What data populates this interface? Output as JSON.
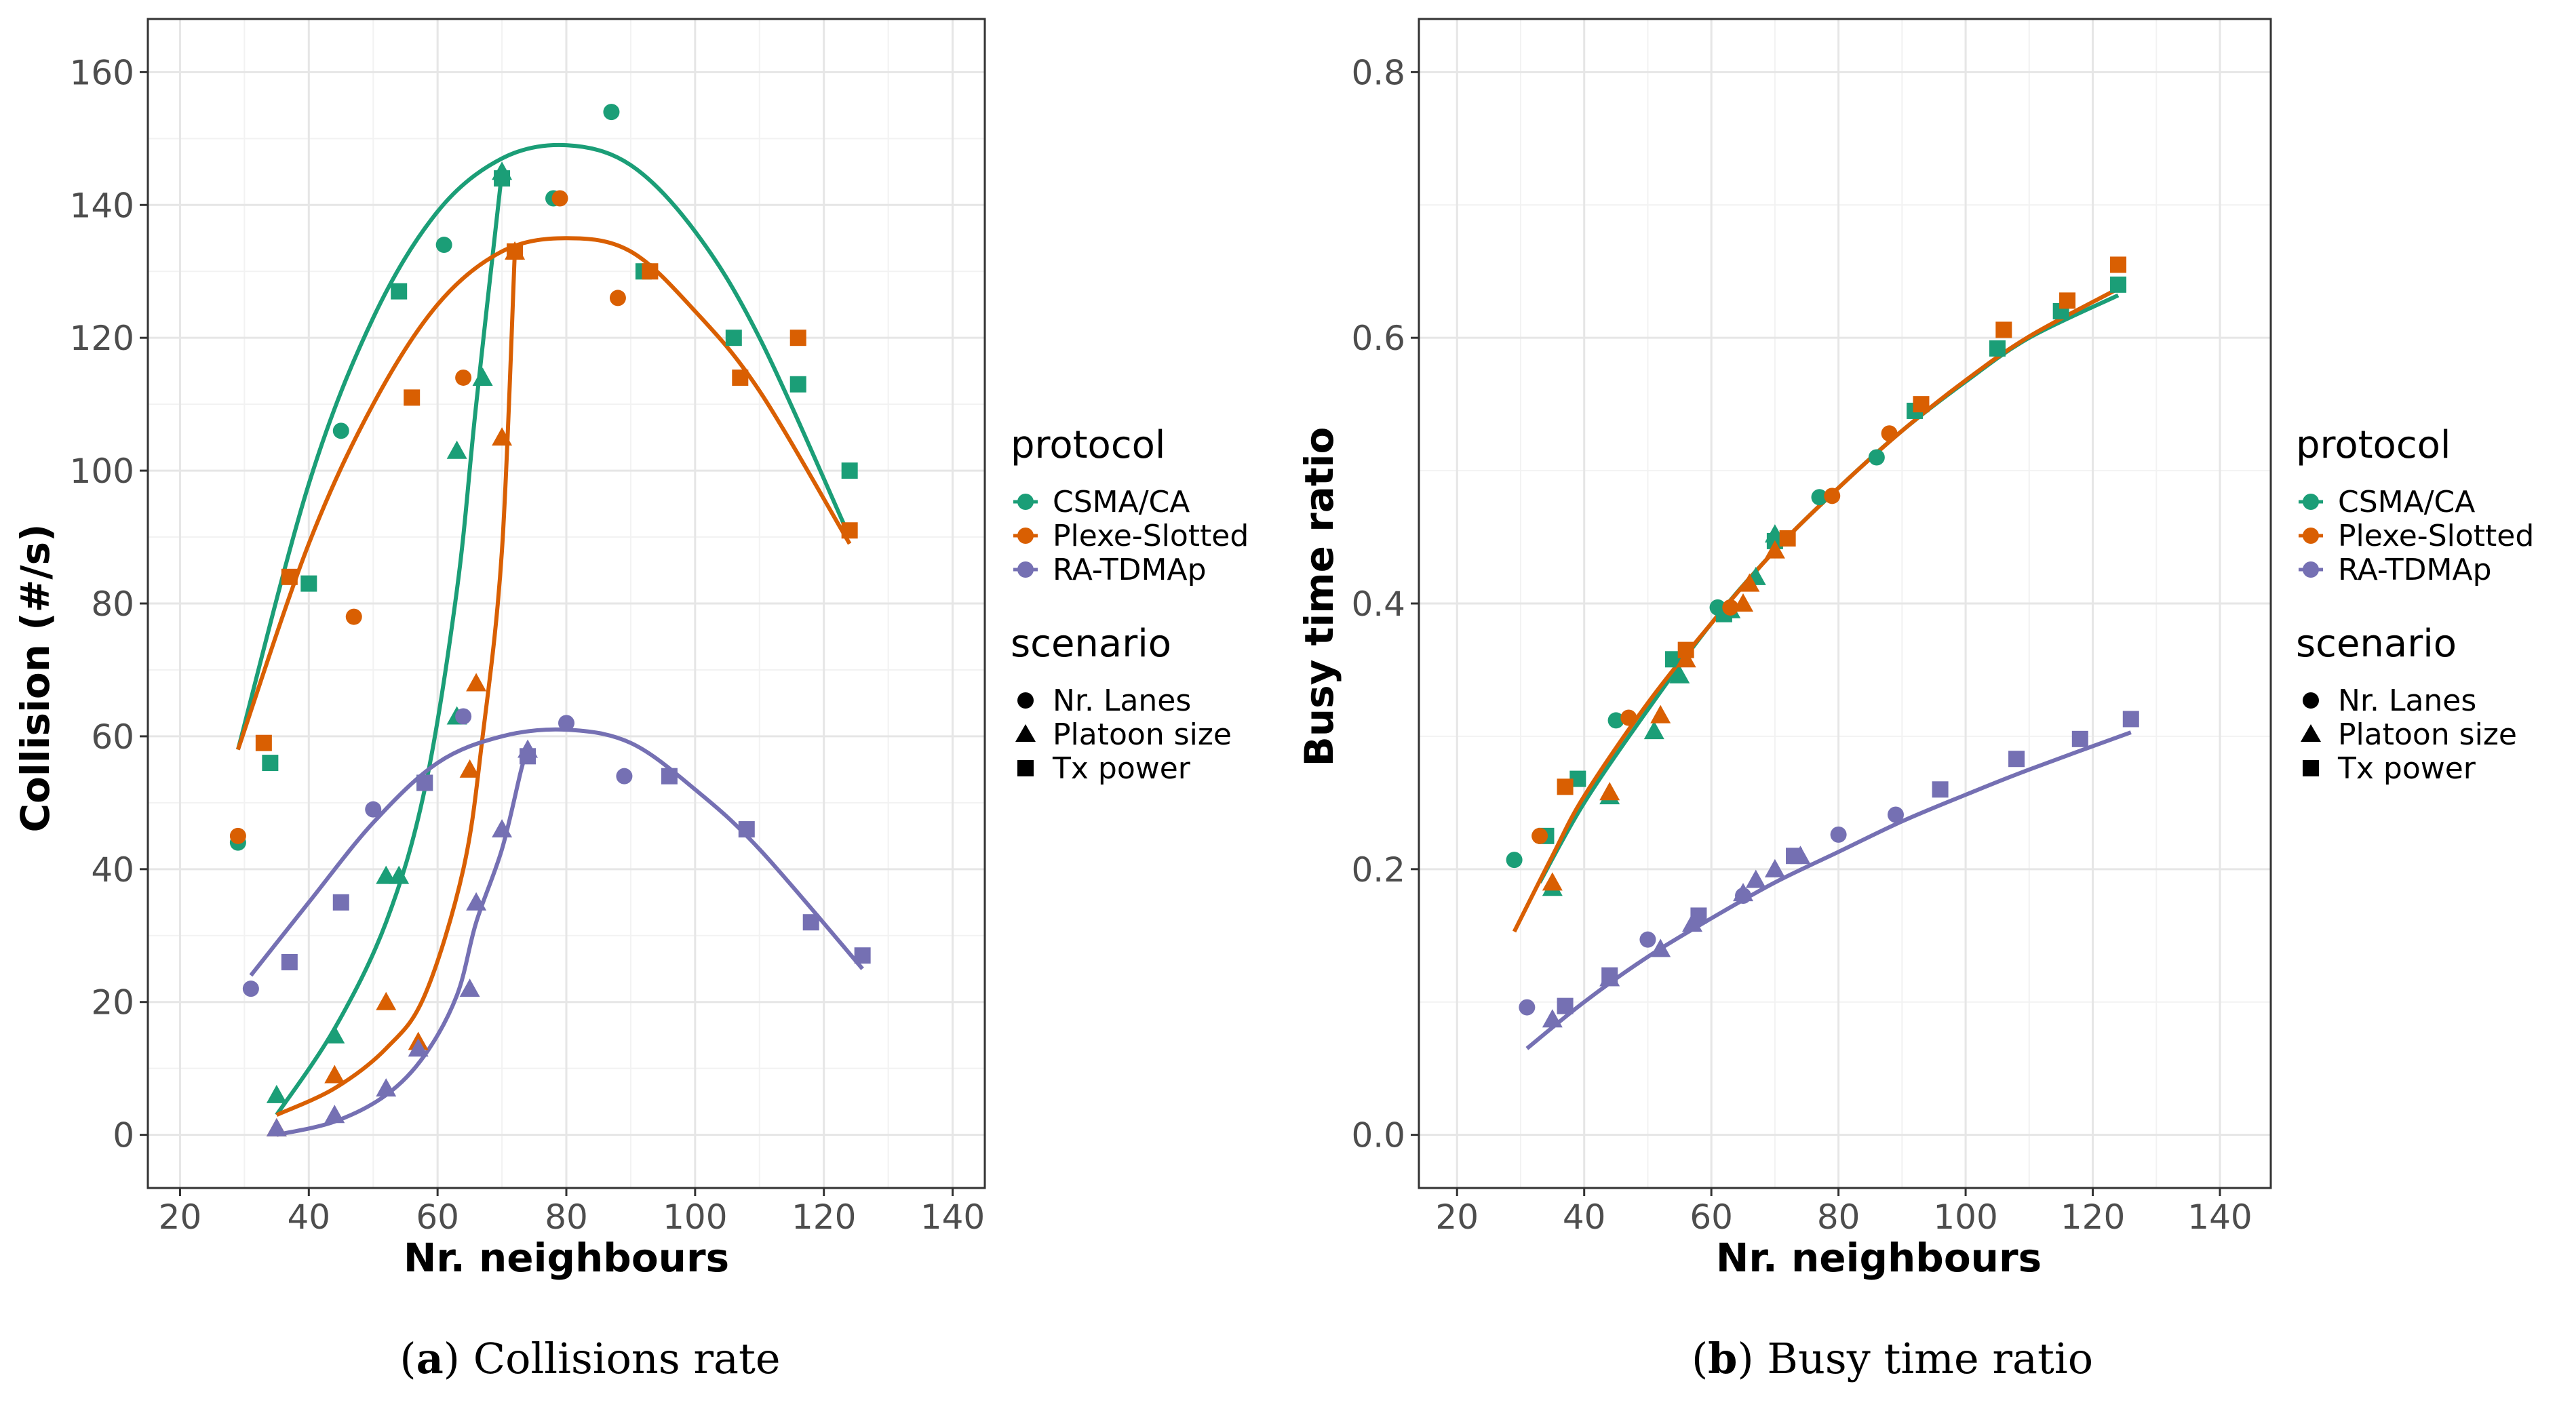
{
  "colors": {
    "CSMA/CA": "#1b9e77",
    "Plexe-Slotted": "#d95f02",
    "RA-TDMAp": "#7570b3"
  },
  "panels": [
    {
      "caption": {
        "open": "(",
        "letter": "a",
        "text": ") Collisions rate"
      },
      "legend": {
        "protocol_title": "protocol",
        "protocols": [
          "CSMA/CA",
          "Plexe-Slotted",
          "RA-TDMAp"
        ],
        "scenario_title": "scenario",
        "scenarios": [
          "Nr. Lanes",
          "Platoon size",
          "Tx power"
        ]
      }
    },
    {
      "caption": {
        "open": "(",
        "letter": "b",
        "text": ") Busy time ratio"
      },
      "legend": {
        "protocol_title": "protocol",
        "protocols": [
          "CSMA/CA",
          "Plexe-Slotted",
          "RA-TDMAp"
        ],
        "scenario_title": "scenario",
        "scenarios": [
          "Nr. Lanes",
          "Platoon size",
          "Tx power"
        ]
      }
    }
  ],
  "chart_data": [
    {
      "type": "scatter",
      "xlabel": "Nr. neighbours",
      "ylabel": "Collision (#/s)",
      "xlim": [
        15,
        145
      ],
      "ylim": [
        -8,
        168
      ],
      "xticks": [
        20,
        40,
        60,
        80,
        100,
        120,
        140
      ],
      "yticks": [
        0,
        20,
        40,
        60,
        80,
        100,
        120,
        140,
        160
      ],
      "grid": true,
      "legend_position": "right",
      "series": [
        {
          "protocol": "CSMA/CA",
          "scenario": "Nr. Lanes",
          "points": [
            [
              29,
              44
            ],
            [
              45,
              106
            ],
            [
              61,
              134
            ],
            [
              78,
              141
            ],
            [
              87,
              154
            ]
          ]
        },
        {
          "protocol": "CSMA/CA",
          "scenario": "Platoon size",
          "points": [
            [
              35,
              6
            ],
            [
              44,
              15
            ],
            [
              52,
              39
            ],
            [
              54,
              39
            ],
            [
              63,
              63
            ],
            [
              63,
              103
            ],
            [
              67,
              114
            ],
            [
              70,
              145
            ]
          ]
        },
        {
          "protocol": "CSMA/CA",
          "scenario": "Tx power",
          "points": [
            [
              34,
              56
            ],
            [
              40,
              83
            ],
            [
              54,
              127
            ],
            [
              58,
              53
            ],
            [
              70,
              144
            ],
            [
              92,
              130
            ],
            [
              106,
              120
            ],
            [
              116,
              113
            ],
            [
              124,
              100
            ]
          ]
        },
        {
          "protocol": "Plexe-Slotted",
          "scenario": "Nr. Lanes",
          "points": [
            [
              29,
              45
            ],
            [
              47,
              78
            ],
            [
              64,
              114
            ],
            [
              79,
              141
            ],
            [
              88,
              126
            ]
          ]
        },
        {
          "protocol": "Plexe-Slotted",
          "scenario": "Platoon size",
          "points": [
            [
              35,
              1
            ],
            [
              44,
              9
            ],
            [
              52,
              20
            ],
            [
              57,
              14
            ],
            [
              65,
              55
            ],
            [
              66,
              68
            ],
            [
              70,
              105
            ],
            [
              72,
              133
            ]
          ]
        },
        {
          "protocol": "Plexe-Slotted",
          "scenario": "Tx power",
          "points": [
            [
              33,
              59
            ],
            [
              37,
              84
            ],
            [
              56,
              111
            ],
            [
              72,
              133
            ],
            [
              93,
              130
            ],
            [
              107,
              114
            ],
            [
              116,
              120
            ],
            [
              124,
              91
            ]
          ]
        },
        {
          "protocol": "RA-TDMAp",
          "scenario": "Nr. Lanes",
          "points": [
            [
              31,
              22
            ],
            [
              50,
              49
            ],
            [
              64,
              63
            ],
            [
              80,
              62
            ],
            [
              89,
              54
            ]
          ]
        },
        {
          "protocol": "RA-TDMAp",
          "scenario": "Platoon size",
          "points": [
            [
              35,
              1
            ],
            [
              44,
              3
            ],
            [
              52,
              7
            ],
            [
              57,
              13
            ],
            [
              65,
              22
            ],
            [
              66,
              35
            ],
            [
              70,
              46
            ],
            [
              74,
              58
            ]
          ]
        },
        {
          "protocol": "RA-TDMAp",
          "scenario": "Tx power",
          "points": [
            [
              37,
              26
            ],
            [
              45,
              35
            ],
            [
              58,
              53
            ],
            [
              74,
              57
            ],
            [
              96,
              54
            ],
            [
              108,
              46
            ],
            [
              118,
              32
            ],
            [
              126,
              27
            ]
          ]
        }
      ],
      "fits": [
        {
          "protocol": "CSMA/CA",
          "points": [
            [
              29,
              58
            ],
            [
              40,
              98
            ],
            [
              50,
              123
            ],
            [
              60,
              139
            ],
            [
              70,
              147
            ],
            [
              80,
              149
            ],
            [
              90,
              146
            ],
            [
              100,
              136
            ],
            [
              110,
              120
            ],
            [
              124,
              90
            ]
          ]
        },
        {
          "protocol": "CSMA/CA",
          "points": [
            [
              35,
              3
            ],
            [
              44,
              16
            ],
            [
              52,
              32
            ],
            [
              58,
              52
            ],
            [
              63,
              82
            ],
            [
              66,
              110
            ],
            [
              70,
              145
            ]
          ]
        },
        {
          "protocol": "Plexe-Slotted",
          "points": [
            [
              29,
              58
            ],
            [
              40,
              89
            ],
            [
              50,
              110
            ],
            [
              60,
              125
            ],
            [
              70,
              133
            ],
            [
              80,
              135
            ],
            [
              90,
              133
            ],
            [
              100,
              124
            ],
            [
              110,
              112
            ],
            [
              124,
              89
            ]
          ]
        },
        {
          "protocol": "Plexe-Slotted",
          "points": [
            [
              35,
              3
            ],
            [
              44,
              7
            ],
            [
              52,
              13
            ],
            [
              58,
              21
            ],
            [
              64,
              40
            ],
            [
              67,
              60
            ],
            [
              70,
              88
            ],
            [
              72,
              133
            ]
          ]
        },
        {
          "protocol": "RA-TDMAp",
          "points": [
            [
              31,
              24
            ],
            [
              40,
              35
            ],
            [
              50,
              47
            ],
            [
              60,
              56
            ],
            [
              70,
              60
            ],
            [
              80,
              61
            ],
            [
              90,
              59
            ],
            [
              100,
              52
            ],
            [
              110,
              43
            ],
            [
              126,
              25
            ]
          ]
        },
        {
          "protocol": "RA-TDMAp",
          "points": [
            [
              35,
              0
            ],
            [
              44,
              2
            ],
            [
              52,
              6
            ],
            [
              58,
              12
            ],
            [
              63,
              21
            ],
            [
              66,
              32
            ],
            [
              70,
              43
            ],
            [
              73,
              55
            ],
            [
              74,
              58
            ]
          ]
        }
      ]
    },
    {
      "type": "scatter",
      "xlabel": "Nr. neighbours",
      "ylabel": "Busy time ratio",
      "xlim": [
        14,
        148
      ],
      "ylim": [
        -0.04,
        0.84
      ],
      "xticks": [
        20,
        40,
        60,
        80,
        100,
        120,
        140
      ],
      "yticks": [
        0.0,
        0.2,
        0.4,
        0.6,
        0.8
      ],
      "yticklabels": [
        "0.0",
        "0.2",
        "0.4",
        "0.6",
        "0.8"
      ],
      "grid": true,
      "legend_position": "right",
      "series": [
        {
          "protocol": "CSMA/CA",
          "scenario": "Nr. Lanes",
          "points": [
            [
              29,
              0.207
            ],
            [
              45,
              0.312
            ],
            [
              61,
              0.397
            ],
            [
              77,
              0.48
            ],
            [
              86,
              0.51
            ]
          ]
        },
        {
          "protocol": "CSMA/CA",
          "scenario": "Platoon size",
          "points": [
            [
              35,
              0.186
            ],
            [
              44,
              0.255
            ],
            [
              51,
              0.304
            ],
            [
              55,
              0.346
            ],
            [
              63,
              0.395
            ],
            [
              67,
              0.42
            ],
            [
              70,
              0.452
            ]
          ]
        },
        {
          "protocol": "CSMA/CA",
          "scenario": "Tx power",
          "points": [
            [
              34,
              0.225
            ],
            [
              39,
              0.268
            ],
            [
              54,
              0.358
            ],
            [
              62,
              0.392
            ],
            [
              70,
              0.447
            ],
            [
              92,
              0.545
            ],
            [
              105,
              0.592
            ],
            [
              115,
              0.62
            ],
            [
              124,
              0.64
            ]
          ]
        },
        {
          "protocol": "Plexe-Slotted",
          "scenario": "Nr. Lanes",
          "points": [
            [
              33,
              0.225
            ],
            [
              47,
              0.314
            ],
            [
              63,
              0.397
            ],
            [
              79,
              0.481
            ],
            [
              88,
              0.528
            ]
          ]
        },
        {
          "protocol": "Plexe-Slotted",
          "scenario": "Platoon size",
          "points": [
            [
              35,
              0.19
            ],
            [
              44,
              0.258
            ],
            [
              52,
              0.316
            ],
            [
              56,
              0.358
            ],
            [
              65,
              0.4
            ],
            [
              66,
              0.415
            ],
            [
              70,
              0.44
            ]
          ]
        },
        {
          "protocol": "Plexe-Slotted",
          "scenario": "Tx power",
          "points": [
            [
              37,
              0.262
            ],
            [
              56,
              0.365
            ],
            [
              72,
              0.449
            ],
            [
              93,
              0.55
            ],
            [
              106,
              0.606
            ],
            [
              116,
              0.628
            ],
            [
              124,
              0.655
            ]
          ]
        },
        {
          "protocol": "RA-TDMAp",
          "scenario": "Nr. Lanes",
          "points": [
            [
              31,
              0.096
            ],
            [
              50,
              0.147
            ],
            [
              65,
              0.18
            ],
            [
              80,
              0.226
            ],
            [
              89,
              0.241
            ]
          ]
        },
        {
          "protocol": "RA-TDMAp",
          "scenario": "Platoon size",
          "points": [
            [
              35,
              0.087
            ],
            [
              44,
              0.118
            ],
            [
              52,
              0.14
            ],
            [
              57,
              0.159
            ],
            [
              65,
              0.182
            ],
            [
              67,
              0.192
            ],
            [
              70,
              0.2
            ],
            [
              74,
              0.21
            ]
          ]
        },
        {
          "protocol": "RA-TDMAp",
          "scenario": "Tx power",
          "points": [
            [
              37,
              0.097
            ],
            [
              44,
              0.12
            ],
            [
              58,
              0.165
            ],
            [
              73,
              0.21
            ],
            [
              96,
              0.26
            ],
            [
              108,
              0.283
            ],
            [
              118,
              0.298
            ],
            [
              126,
              0.313
            ]
          ]
        }
      ],
      "fits": [
        {
          "protocol": "CSMA/CA",
          "points": [
            [
              33,
              0.19
            ],
            [
              40,
              0.25
            ],
            [
              50,
              0.32
            ],
            [
              60,
              0.385
            ],
            [
              70,
              0.44
            ],
            [
              80,
              0.487
            ],
            [
              90,
              0.53
            ],
            [
              100,
              0.567
            ],
            [
              110,
              0.6
            ],
            [
              124,
              0.632
            ]
          ]
        },
        {
          "protocol": "Plexe-Slotted",
          "points": [
            [
              29,
              0.153
            ],
            [
              35,
              0.21
            ],
            [
              40,
              0.255
            ],
            [
              50,
              0.325
            ],
            [
              60,
              0.385
            ],
            [
              70,
              0.44
            ],
            [
              80,
              0.487
            ],
            [
              90,
              0.53
            ],
            [
              100,
              0.568
            ],
            [
              110,
              0.601
            ],
            [
              124,
              0.637
            ]
          ]
        },
        {
          "protocol": "RA-TDMAp",
          "points": [
            [
              31,
              0.065
            ],
            [
              40,
              0.1
            ],
            [
              50,
              0.134
            ],
            [
              60,
              0.163
            ],
            [
              70,
              0.19
            ],
            [
              80,
              0.213
            ],
            [
              90,
              0.236
            ],
            [
              100,
              0.256
            ],
            [
              110,
              0.275
            ],
            [
              126,
              0.303
            ]
          ]
        }
      ]
    }
  ]
}
